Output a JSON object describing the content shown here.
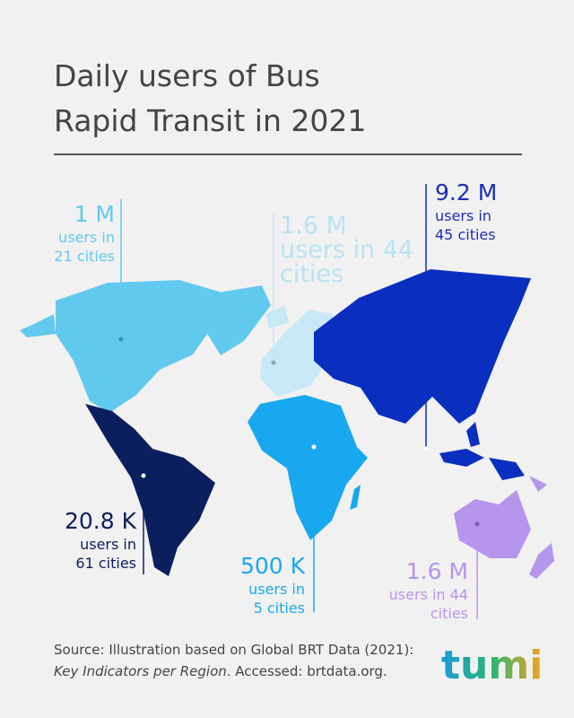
{
  "title": "Daily users of Bus Rapid Transit in 2021",
  "regions": [
    {
      "value": "1 M",
      "detail": [
        "users in",
        "21 cities"
      ]
    },
    {
      "value": "1.6 M",
      "detail": [
        "users in 44",
        "cities"
      ]
    },
    {
      "value": "9.2 M",
      "detail": [
        "users in",
        "45 cities"
      ]
    },
    {
      "value": "20.8 K",
      "detail": [
        "users in",
        "61 cities"
      ]
    },
    {
      "value": "500 K",
      "detail": [
        "users in",
        "5 cities"
      ]
    },
    {
      "value": "1.6 M",
      "detail": [
        "users in 44",
        "cities"
      ]
    }
  ],
  "source": {
    "line1": "Source: Illustration based on Global BRT Data (2021):",
    "italic": "Key Indicators per Region",
    "rest": ". Accessed: brtdata.org."
  },
  "logo": "tumi"
}
